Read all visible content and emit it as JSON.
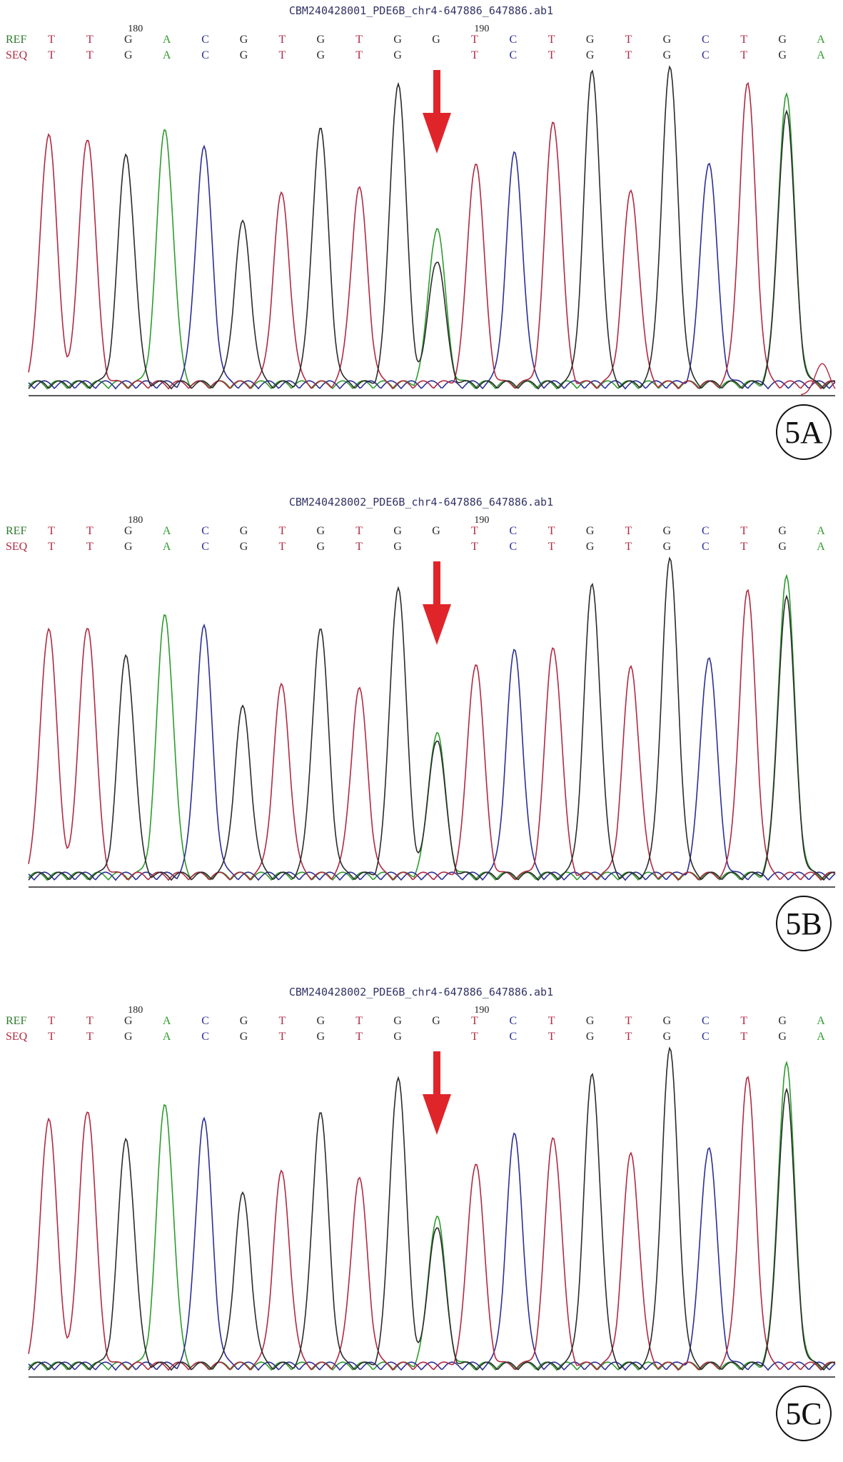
{
  "panels": [
    {
      "filename": "CBM240428001_PDE6B_chr4-647886_647886.ab1",
      "panel_label": "5A",
      "ref_label": "REF",
      "seq_label": "SEQ",
      "position_markers": [
        {
          "label": "180",
          "column": 2
        },
        {
          "label": "190",
          "column": 11
        }
      ],
      "ref_bases": [
        "T",
        "T",
        "G",
        "A",
        "C",
        "G",
        "T",
        "G",
        "T",
        "G",
        "G",
        "T",
        "C",
        "T",
        "G",
        "T",
        "G",
        "C",
        "T",
        "G",
        "A"
      ],
      "seq_bases": [
        "T",
        "T",
        "G",
        "A",
        "C",
        "G",
        "T",
        "G",
        "T",
        "G",
        "",
        "T",
        "C",
        "T",
        "G",
        "T",
        "G",
        "C",
        "T",
        "G",
        "A"
      ]
    },
    {
      "filename": "CBM240428002_PDE6B_chr4-647886_647886.ab1",
      "panel_label": "5B",
      "ref_label": "REF",
      "seq_label": "SEQ",
      "position_markers": [
        {
          "label": "180",
          "column": 2
        },
        {
          "label": "190",
          "column": 11
        }
      ],
      "ref_bases": [
        "T",
        "T",
        "G",
        "A",
        "C",
        "G",
        "T",
        "G",
        "T",
        "G",
        "G",
        "T",
        "C",
        "T",
        "G",
        "T",
        "G",
        "C",
        "T",
        "G",
        "A"
      ],
      "seq_bases": [
        "T",
        "T",
        "G",
        "A",
        "C",
        "G",
        "T",
        "G",
        "T",
        "G",
        "",
        "T",
        "C",
        "T",
        "G",
        "T",
        "G",
        "C",
        "T",
        "G",
        "A"
      ]
    },
    {
      "filename": "CBM240428002_PDE6B_chr4-647886_647886.ab1",
      "panel_label": "5C",
      "ref_label": "REF",
      "seq_label": "SEQ",
      "position_markers": [
        {
          "label": "180",
          "column": 2
        },
        {
          "label": "190",
          "column": 11
        }
      ],
      "ref_bases": [
        "T",
        "T",
        "G",
        "A",
        "C",
        "G",
        "T",
        "G",
        "T",
        "G",
        "G",
        "T",
        "C",
        "T",
        "G",
        "T",
        "G",
        "C",
        "T",
        "G",
        "A"
      ],
      "seq_bases": [
        "T",
        "T",
        "G",
        "A",
        "C",
        "G",
        "T",
        "G",
        "T",
        "G",
        "",
        "T",
        "C",
        "T",
        "G",
        "T",
        "G",
        "C",
        "T",
        "G",
        "A"
      ]
    }
  ],
  "colors": {
    "T": "#b02a42",
    "G": "#2b2b2b",
    "A": "#2e9b2e",
    "C": "#2b2f95",
    "ref_label": "#2e7a2e",
    "seq_label": "#b02a42",
    "arrow": "#e0252a",
    "filename": "#333366"
  },
  "chart_data": [
    {
      "type": "line",
      "title": "CBM240428001_PDE6B_chr4-647886_647886.ab1",
      "x": [
        1,
        2,
        3,
        4,
        5,
        6,
        7,
        8,
        9,
        10,
        11,
        12,
        13,
        14,
        15,
        16,
        17,
        18,
        19,
        20
      ],
      "peak_base": [
        "T",
        "T",
        "G",
        "A",
        "C",
        "G",
        "T",
        "G",
        "T",
        "G",
        "G",
        "T",
        "C",
        "T",
        "G",
        "T",
        "G",
        "C",
        "T",
        "G"
      ],
      "peak_base_2": "A",
      "series": [
        {
          "base": "T",
          "values": [
            0.8,
            0.79,
            0,
            0,
            0,
            0,
            0.6,
            0,
            0.62,
            0,
            0,
            0.71,
            0,
            0.84,
            0,
            0.61,
            0,
            0,
            0.95,
            0
          ]
        },
        {
          "base": "G",
          "values": [
            0,
            0,
            0.73,
            0,
            0,
            0.51,
            0,
            0.81,
            0,
            0.96,
            0.4,
            0,
            0,
            0,
            0.99,
            0,
            1.0,
            0,
            0,
            0.87
          ]
        },
        {
          "base": "A",
          "values": [
            0,
            0,
            0,
            0.81,
            0,
            0,
            0,
            0,
            0,
            0,
            0.5,
            0,
            0,
            0,
            0,
            0,
            0,
            0,
            0,
            0.92
          ]
        },
        {
          "base": "C",
          "values": [
            0,
            0,
            0,
            0,
            0.75,
            0,
            0,
            0,
            0,
            0,
            0,
            0,
            0.73,
            0,
            0,
            0,
            0,
            0.71,
            0,
            0
          ]
        }
      ],
      "mutation_index": 11
    },
    {
      "type": "line",
      "title": "CBM240428002_PDE6B_chr4-647886_647886.ab1",
      "x": [
        1,
        2,
        3,
        4,
        5,
        6,
        7,
        8,
        9,
        10,
        11,
        12,
        13,
        14,
        15,
        16,
        17,
        18,
        19,
        20
      ],
      "peak_base": [
        "T",
        "T",
        "G",
        "A",
        "C",
        "G",
        "T",
        "G",
        "T",
        "G",
        "G",
        "T",
        "C",
        "T",
        "G",
        "T",
        "G",
        "C",
        "T",
        "G"
      ],
      "series": [
        {
          "base": "T",
          "values": [
            0.79,
            0.8,
            0,
            0,
            0,
            0,
            0.6,
            0,
            0.59,
            0,
            0,
            0.68,
            0,
            0.73,
            0,
            0.66,
            0,
            0,
            0.9,
            0
          ]
        },
        {
          "base": "G",
          "values": [
            0,
            0,
            0.7,
            0,
            0,
            0.53,
            0,
            0.78,
            0,
            0.92,
            0.44,
            0,
            0,
            0,
            0.92,
            0,
            1.0,
            0,
            0,
            0.89
          ]
        },
        {
          "base": "A",
          "values": [
            0,
            0,
            0,
            0.83,
            0,
            0,
            0,
            0,
            0,
            0,
            0.46,
            0,
            0,
            0,
            0,
            0,
            0,
            0,
            0,
            0.95
          ]
        },
        {
          "base": "C",
          "values": [
            0,
            0,
            0,
            0,
            0.79,
            0,
            0,
            0,
            0,
            0,
            0,
            0,
            0.71,
            0,
            0,
            0,
            0,
            0.7,
            0,
            0
          ]
        }
      ],
      "mutation_index": 11
    },
    {
      "type": "line",
      "title": "CBM240428002_PDE6B_chr4-647886_647886.ab1",
      "x": [
        1,
        2,
        3,
        4,
        5,
        6,
        7,
        8,
        9,
        10,
        11,
        12,
        13,
        14,
        15,
        16,
        17,
        18,
        19,
        20
      ],
      "peak_base": [
        "T",
        "T",
        "G",
        "A",
        "C",
        "G",
        "T",
        "G",
        "T",
        "G",
        "G",
        "T",
        "C",
        "T",
        "G",
        "T",
        "G",
        "C",
        "T",
        "G"
      ],
      "series": [
        {
          "base": "T",
          "values": [
            0.79,
            0.82,
            0,
            0,
            0,
            0,
            0.61,
            0,
            0.59,
            0,
            0,
            0.65,
            0,
            0.73,
            0,
            0.67,
            0,
            0,
            0.91,
            0
          ]
        },
        {
          "base": "G",
          "values": [
            0,
            0,
            0.72,
            0,
            0,
            0.54,
            0,
            0.8,
            0,
            0.92,
            0.45,
            0,
            0,
            0,
            0.92,
            0,
            1.0,
            0,
            0,
            0.88
          ]
        },
        {
          "base": "A",
          "values": [
            0,
            0,
            0,
            0.83,
            0,
            0,
            0,
            0,
            0,
            0,
            0.48,
            0,
            0,
            0,
            0,
            0,
            0,
            0,
            0,
            0.96
          ]
        },
        {
          "base": "C",
          "values": [
            0,
            0,
            0,
            0,
            0.78,
            0,
            0,
            0,
            0,
            0,
            0,
            0,
            0.73,
            0,
            0,
            0,
            0,
            0.7,
            0,
            0
          ]
        }
      ],
      "mutation_index": 11
    }
  ]
}
